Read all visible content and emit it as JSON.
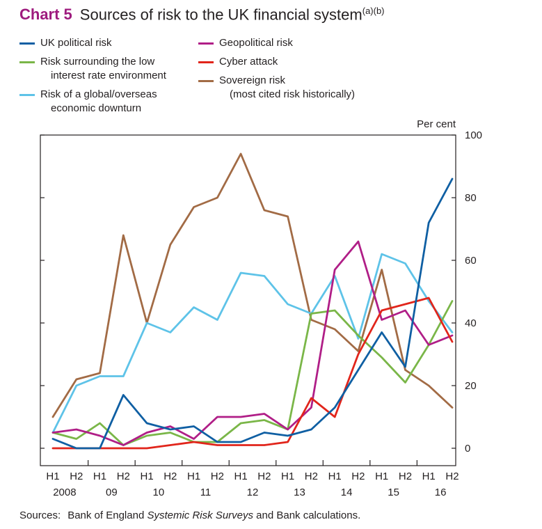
{
  "title": {
    "chart_label": "Chart 5",
    "text": "Sources of risk to the UK financial system",
    "superscript": "(a)(b)"
  },
  "colors": {
    "ink": "#231f20",
    "title_accent": "#9e1b7e",
    "background": "#ffffff"
  },
  "chart_data": {
    "type": "line",
    "title": "Sources of risk to the UK financial system",
    "ylabel": "Per cent",
    "ylim": [
      0,
      100
    ],
    "y_ticks": [
      0,
      20,
      40,
      60,
      80,
      100
    ],
    "grid": false,
    "legend_position": "top-left, two columns",
    "h_labels": [
      "H1",
      "H2",
      "H1",
      "H2",
      "H1",
      "H2",
      "H1",
      "H2",
      "H1",
      "H2",
      "H1",
      "H2",
      "H1",
      "H2",
      "H1",
      "H2",
      "H1",
      "H2"
    ],
    "year_labels": [
      "2008",
      "09",
      "10",
      "11",
      "12",
      "13",
      "14",
      "15",
      "16"
    ],
    "categories": [
      "2008 H1",
      "2008 H2",
      "2009 H1",
      "2009 H2",
      "2010 H1",
      "2010 H2",
      "2011 H1",
      "2011 H2",
      "2012 H1",
      "2012 H2",
      "2013 H1",
      "2013 H2",
      "2014 H1",
      "2014 H2",
      "2015 H1",
      "2015 H2",
      "2016 H1",
      "2016 H2"
    ],
    "series": [
      {
        "id": "uk-political-risk",
        "name": "UK political risk",
        "legend_lines": [
          "UK political risk"
        ],
        "color": "#0f5fa3",
        "values": [
          3,
          0,
          0,
          17,
          8,
          6,
          7,
          2,
          2,
          5,
          4,
          6,
          13,
          25,
          37,
          26,
          72,
          86
        ]
      },
      {
        "id": "low-interest-rate-risk",
        "name": "Risk surrounding the low interest rate environment",
        "legend_lines": [
          "Risk surrounding the low",
          "interest rate environment"
        ],
        "color": "#7ab648",
        "values": [
          5,
          3,
          8,
          1,
          4,
          5,
          2,
          2,
          8,
          9,
          6,
          43,
          44,
          36,
          29,
          21,
          33,
          47
        ]
      },
      {
        "id": "global-downturn-risk",
        "name": "Risk of a global/overseas economic downturn",
        "legend_lines": [
          "Risk of a global/overseas",
          "economic downturn"
        ],
        "color": "#5ec3e8",
        "values": [
          5,
          20,
          23,
          23,
          40,
          37,
          45,
          41,
          56,
          55,
          46,
          43,
          55,
          35,
          62,
          59,
          47,
          37
        ]
      },
      {
        "id": "geopolitical-risk",
        "name": "Geopolitical risk",
        "legend_lines": [
          "Geopolitical risk"
        ],
        "color": "#b01e87",
        "values": [
          5,
          6,
          4,
          1,
          5,
          7,
          3,
          10,
          10,
          11,
          6,
          13,
          57,
          66,
          41,
          44,
          33,
          36
        ]
      },
      {
        "id": "cyber-attack",
        "name": "Cyber attack",
        "legend_lines": [
          "Cyber attack"
        ],
        "color": "#e1251b",
        "values": [
          0,
          0,
          0,
          0,
          0,
          1,
          2,
          1,
          1,
          1,
          2,
          16,
          10,
          30,
          44,
          46,
          48,
          34
        ]
      },
      {
        "id": "sovereign-risk",
        "name": "Sovereign risk (most cited risk historically)",
        "legend_lines": [
          "Sovereign risk",
          "(most cited risk historically)"
        ],
        "color": "#a26b45",
        "values": [
          10,
          22,
          24,
          68,
          40,
          65,
          77,
          80,
          94,
          76,
          74,
          41,
          38,
          31,
          57,
          25,
          20,
          13
        ]
      }
    ]
  },
  "sources": {
    "prefix": "Sources:",
    "before_italic": "Bank of England ",
    "italic": "Systemic Risk Surveys",
    "after_italic": " and Bank calculations."
  }
}
